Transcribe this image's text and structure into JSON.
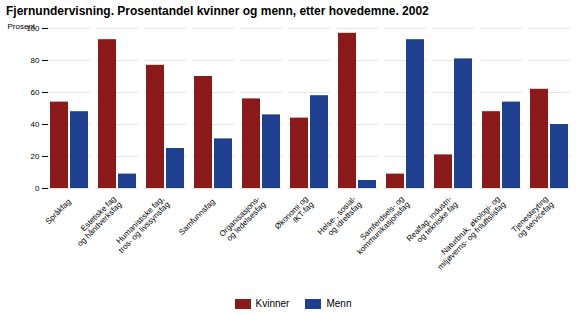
{
  "chart_data": {
    "type": "bar",
    "title": "Fjernundervisning. Prosentandel kvinner og menn, etter hovedemne. 2002",
    "ylabel": "Prosent",
    "categories": [
      "Språkfag",
      "Estetiske fag\nog håndverksfag",
      "Humanistiske fag,\ntros- og livssynsfag",
      "Samfunnsfag",
      "Organisasjons-\nog ledelsesfag",
      "Økonomi og\nIKT-fag",
      "Helse-, sosial-\nog idrettsfag",
      "Samferdsels- og\nkommunikasjonsfag",
      "Realfag, industri-\nog tekniske fag",
      "Naturbruk, økologi- og\nmiljøverns- og friluftslisfag",
      "Tjenesteyting\nog servicefag"
    ],
    "series": [
      {
        "name": "Kvinner",
        "color": "#8B1A1A",
        "values": [
          54,
          93,
          77,
          70,
          56,
          44,
          97,
          9,
          21,
          48,
          62
        ]
      },
      {
        "name": "Menn",
        "color": "#1F3F8F",
        "values": [
          48,
          9,
          25,
          31,
          46,
          58,
          5,
          93,
          81,
          54,
          40
        ]
      }
    ],
    "ylim": [
      0,
      100
    ],
    "yticks": [
      0,
      20,
      40,
      60,
      80,
      100
    ],
    "grid": true,
    "legend": "bottom"
  }
}
